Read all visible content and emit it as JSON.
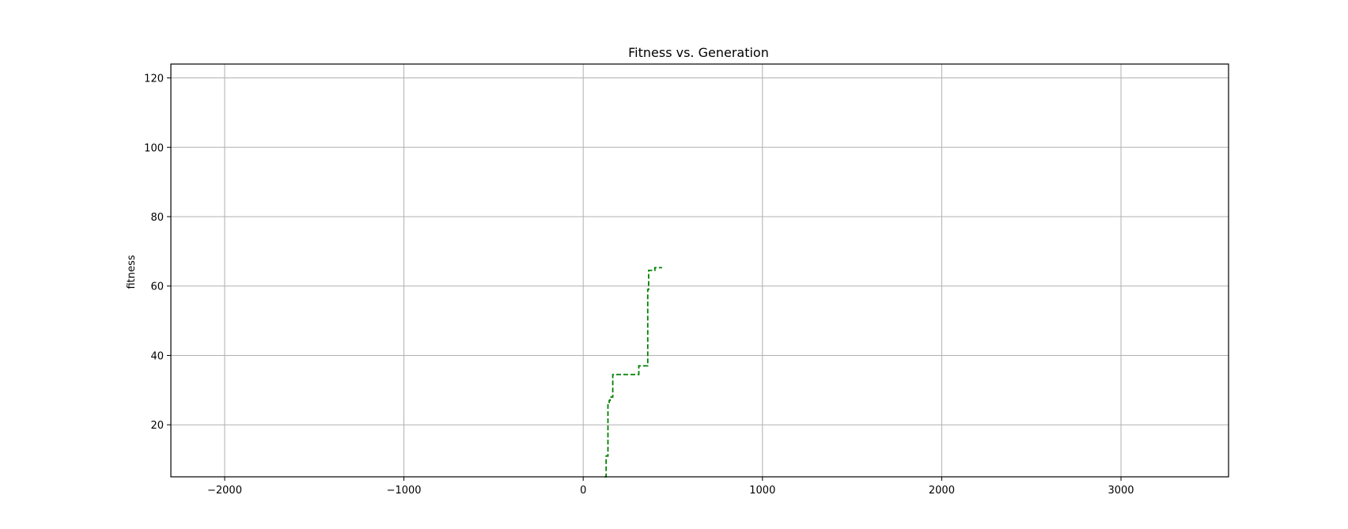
{
  "chart_data": {
    "type": "line",
    "title": "Fitness vs. Generation",
    "xlabel": "",
    "ylabel": "fitness",
    "xlim": [
      -2300,
      3600
    ],
    "ylim": [
      5,
      124
    ],
    "xticks": [
      -2000,
      -1000,
      0,
      1000,
      2000,
      3000
    ],
    "xtick_labels": [
      "−2000",
      "−1000",
      "0",
      "1000",
      "2000",
      "3000"
    ],
    "yticks": [
      20,
      40,
      60,
      80,
      100,
      120
    ],
    "ytick_labels": [
      "20",
      "40",
      "60",
      "80",
      "100",
      "120"
    ],
    "grid": true,
    "series": [
      {
        "color": "#008000",
        "line_style": "dashed",
        "x": [
          120,
          128,
          128,
          138,
          138,
          145,
          145,
          150,
          150,
          165,
          165,
          170,
          170,
          310,
          310,
          325,
          325,
          360,
          360,
          365,
          365,
          400,
          400,
          440
        ],
        "y": [
          5,
          5,
          11,
          11,
          26,
          26,
          27,
          27,
          28,
          28,
          34.5,
          34.5,
          34.5,
          34.5,
          37,
          37,
          37,
          37,
          59,
          59,
          64.5,
          64.5,
          65.3,
          65.3
        ]
      }
    ]
  }
}
